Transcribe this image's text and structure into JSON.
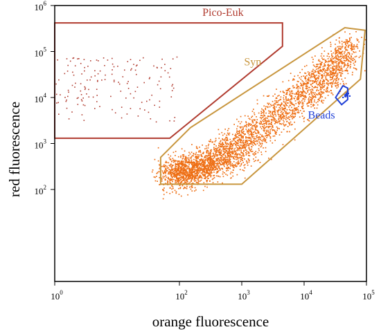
{
  "chart_data": {
    "type": "scatter",
    "x_scale": "log",
    "y_scale": "log",
    "xlim": [
      1,
      100000
    ],
    "ylim": [
      1,
      1000000
    ],
    "xlabel": "orange fluorescence",
    "ylabel": "red fluorescence",
    "x_ticks": [
      {
        "base": "10",
        "exp": "0",
        "value": 1
      },
      {
        "base": "10",
        "exp": "2",
        "value": 100
      },
      {
        "base": "10",
        "exp": "3",
        "value": 1000
      },
      {
        "base": "10",
        "exp": "4",
        "value": 10000
      },
      {
        "base": "10",
        "exp": "5",
        "value": 100000
      }
    ],
    "y_ticks": [
      {
        "base": "10",
        "exp": "2",
        "value": 100
      },
      {
        "base": "10",
        "exp": "3",
        "value": 1000
      },
      {
        "base": "10",
        "exp": "4",
        "value": 10000
      },
      {
        "base": "10",
        "exp": "5",
        "value": 100000
      },
      {
        "base": "10",
        "exp": "6",
        "value": 1000000
      }
    ],
    "grid": false,
    "gates": [
      {
        "name": "Pico-Euk",
        "color": "#b03a2e",
        "polygon": [
          [
            1,
            1300
          ],
          [
            70,
            1300
          ],
          [
            4500,
            130000
          ],
          [
            4500,
            420000
          ],
          [
            1,
            420000
          ]
        ],
        "label_at": [
          500,
          600000
        ]
      },
      {
        "name": "Syn",
        "color": "#c8963e",
        "polygon": [
          [
            50,
            130
          ],
          [
            50,
            500
          ],
          [
            150,
            2200
          ],
          [
            45000,
            330000
          ],
          [
            95000,
            290000
          ],
          [
            80000,
            25000
          ],
          [
            1000,
            130
          ]
        ],
        "label_at": [
          1500,
          50000
        ]
      },
      {
        "name": "Beads",
        "color": "#1f3fd6",
        "polygon": [
          [
            32000,
            10000
          ],
          [
            42000,
            18000
          ],
          [
            50000,
            16000
          ],
          [
            50000,
            9000
          ],
          [
            40000,
            7000
          ]
        ],
        "label_at": [
          19000,
          3500
        ]
      }
    ],
    "populations": [
      {
        "name": "Syn",
        "color": "#ee6f14",
        "centroid_ridge": [
          [
            80,
            200
          ],
          [
            300,
            400
          ],
          [
            1000,
            1200
          ],
          [
            5000,
            8000
          ],
          [
            20000,
            35000
          ],
          [
            60000,
            150000
          ]
        ],
        "approx_events": 3500
      },
      {
        "name": "Pico-Euk",
        "color": "#b03a2e",
        "region": {
          "x": [
            1,
            90
          ],
          "y": [
            3000,
            80000
          ]
        },
        "approx_events": 160
      },
      {
        "name": "Beads",
        "color": "#1f3fd6",
        "centroid": [
          45000,
          12000
        ],
        "approx_events": 20
      }
    ]
  }
}
